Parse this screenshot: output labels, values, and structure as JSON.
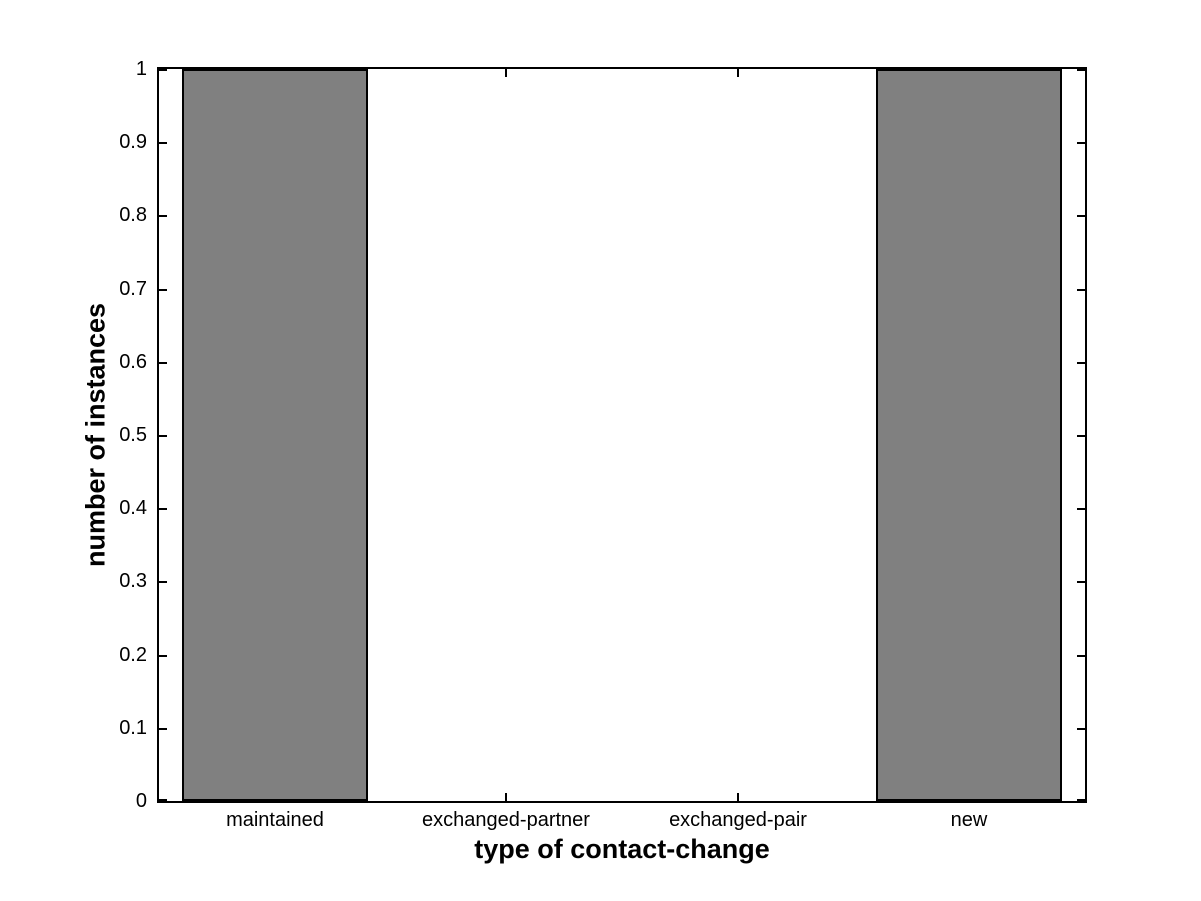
{
  "figure": {
    "background": "#ffffff",
    "title": ""
  },
  "chart_data": {
    "type": "bar",
    "categories": [
      "maintained",
      "exchanged-partner",
      "exchanged-pair",
      "new"
    ],
    "values": [
      1,
      0,
      0,
      1
    ],
    "title": "",
    "xlabel": "type of contact-change",
    "ylabel": "number of instances",
    "ylim": [
      0,
      1
    ],
    "ytick_interval": 0.1,
    "ytick_labels": [
      "0",
      "0.1",
      "0.2",
      "0.3",
      "0.4",
      "0.5",
      "0.6",
      "0.7",
      "0.8",
      "0.9",
      "1"
    ],
    "bar_width_fraction": 0.8,
    "bar_color": "#808080",
    "bar_edge_color": "#000000",
    "axis_color": "#000000",
    "plot_background": "#ffffff",
    "grid": false,
    "legend": null
  }
}
